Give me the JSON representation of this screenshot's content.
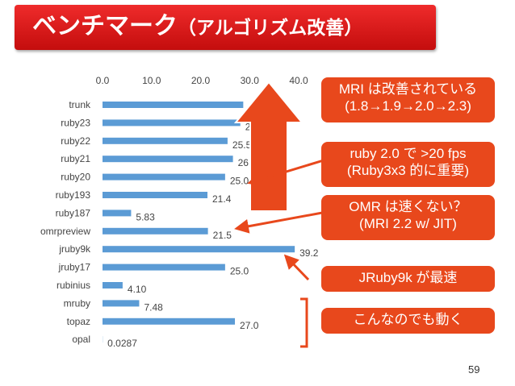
{
  "slide": {
    "title": "ベンチマーク",
    "title_paren": "（アルゴリズム改善）",
    "page_number": "59"
  },
  "colors": {
    "accent": "#e03020",
    "bar": "#5b9bd5",
    "note_bg": "#e8481c",
    "arrow": "#e8481c"
  },
  "notes": [
    {
      "line1": "MRI は改善されている",
      "line2": "(1.8→1.9→2.0→2.3)"
    },
    {
      "line1": "ruby 2.0 で >20 fps",
      "line2": "(Ruby3x3 的に重要)"
    },
    {
      "line1": "OMR は速くない？",
      "line2": "(MRI 2.2 w/ JIT)"
    },
    {
      "line1": "JRuby9k が最速",
      "line2": ""
    },
    {
      "line1": "こんなのでも動く",
      "line2": ""
    }
  ],
  "chart_data": {
    "type": "bar",
    "orientation": "horizontal",
    "categories": [
      "trunk",
      "ruby23",
      "ruby22",
      "ruby21",
      "ruby20",
      "ruby193",
      "ruby187",
      "omrpreview",
      "jruby9k",
      "jruby17",
      "rubinius",
      "mruby",
      "topaz",
      "opal"
    ],
    "values": [
      28.7,
      28.1,
      25.5,
      26.6,
      25.0,
      21.4,
      5.83,
      21.5,
      39.2,
      25.0,
      4.1,
      7.48,
      27.0,
      0.0287
    ],
    "value_labels": [
      "28.7",
      "28.1",
      "25.5",
      "26.6",
      "25.0",
      "21.4",
      "5.83",
      "21.5",
      "39.2",
      "25.0",
      "4.10",
      "7.48",
      "27.0",
      "0.0287"
    ],
    "xlim": [
      0,
      40
    ],
    "x_ticks": [
      "0.0",
      "10.0",
      "20.0",
      "30.0",
      "40.0"
    ],
    "axis_position": "top",
    "grid": false,
    "legend": "none"
  }
}
